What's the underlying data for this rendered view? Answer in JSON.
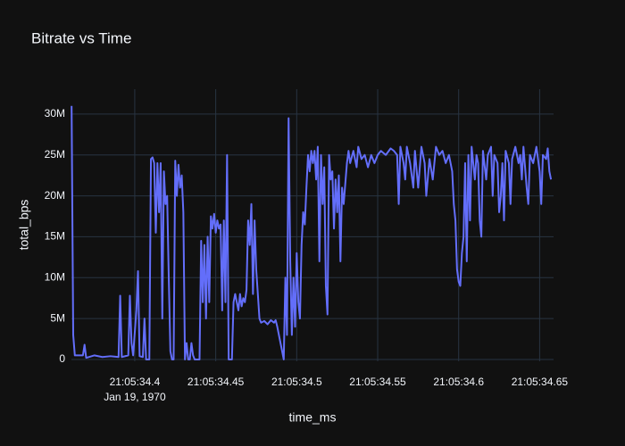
{
  "chart_data": {
    "type": "line",
    "title": "Bitrate vs Time",
    "x_label": "time_ms",
    "y_label": "total_bps",
    "x_date_label": "Jan 19, 1970",
    "color": "#636efa",
    "grid": true,
    "xlim": [
      1631134360.9,
      1631134658.6
    ],
    "xticks": [
      {
        "value": 1631134400,
        "label": "21:05:34.4"
      },
      {
        "value": 1631134450,
        "label": "21:05:34.45"
      },
      {
        "value": 1631134500,
        "label": "21:05:34.5"
      },
      {
        "value": 1631134550,
        "label": "21:05:34.55"
      },
      {
        "value": 1631134600,
        "label": "21:05:34.6"
      },
      {
        "value": 1631134650,
        "label": "21:05:34.65"
      }
    ],
    "ylim": [
      -220000,
      33040000
    ],
    "yticks": [
      0,
      {
        "value": 5000000,
        "label": "5M"
      },
      {
        "value": 10000000,
        "label": "10M"
      },
      {
        "value": 15000000,
        "label": "15M"
      },
      {
        "value": 20000000,
        "label": "20M"
      },
      {
        "value": 25000000,
        "label": "25M"
      },
      {
        "value": 30000000,
        "label": "30M"
      }
    ],
    "x": [
      1631134361,
      1631134362,
      1631134363,
      1631134368,
      1631134369,
      1631134370,
      1631134375,
      1631134380,
      1631134385,
      1631134390,
      1631134391,
      1631134392,
      1631134396,
      1631134397,
      1631134398,
      1631134399,
      1631134401,
      1631134402,
      1631134403,
      1631134405,
      1631134406,
      1631134407,
      1631134409,
      1631134410,
      1631134411,
      1631134412,
      1631134413,
      1631134414,
      1631134415,
      1631134416,
      1631134417,
      1631134418,
      1631134419,
      1631134420,
      1631134421,
      1631134422,
      1631134423,
      1631134424,
      1631134425,
      1631134426,
      1631134427,
      1631134428,
      1631134429,
      1631134430,
      1631134431,
      1631134432,
      1631134433,
      1631134434,
      1631134435,
      1631134436,
      1631134437,
      1631134440,
      1631134441,
      1631134442,
      1631134443,
      1631134444,
      1631134445,
      1631134446,
      1631134447,
      1631134448,
      1631134449,
      1631134450,
      1631134451,
      1631134452,
      1631134453,
      1631134454,
      1631134455,
      1631134456,
      1631134457,
      1631134458,
      1631134460,
      1631134461,
      1631134462,
      1631134463,
      1631134464,
      1631134465,
      1631134466,
      1631134467,
      1631134468,
      1631134469,
      1631134470,
      1631134471,
      1631134472,
      1631134473,
      1631134474,
      1631134475,
      1631134476,
      1631134477,
      1631134478,
      1631134480,
      1631134482,
      1631134484,
      1631134486,
      1631134487,
      1631134488,
      1631134490,
      1631134492,
      1631134493,
      1631134494,
      1631134495,
      1631134496,
      1631134497,
      1631134498,
      1631134499,
      1631134500,
      1631134501,
      1631134502,
      1631134503,
      1631134504,
      1631134505,
      1631134506,
      1631134507,
      1631134508,
      1631134509,
      1631134510,
      1631134511,
      1631134512,
      1631134513,
      1631134514,
      1631134515,
      1631134516,
      1631134517,
      1631134518,
      1631134519,
      1631134520,
      1631134521,
      1631134522,
      1631134523,
      1631134524,
      1631134525,
      1631134526,
      1631134527,
      1631134528,
      1631134529,
      1631134531,
      1631134532,
      1631134533,
      1631134535,
      1631134537,
      1631134538,
      1631134540,
      1631134542,
      1631134544,
      1631134546,
      1631134548,
      1631134550,
      1631134552,
      1631134555,
      1631134558,
      1631134560,
      1631134562,
      1631134563,
      1631134564,
      1631134566,
      1631134567,
      1631134568,
      1631134570,
      1631134572,
      1631134573,
      1631134575,
      1631134577,
      1631134579,
      1631134580,
      1631134582,
      1631134584,
      1631134586,
      1631134588,
      1631134590,
      1631134592,
      1631134594,
      1631134596,
      1631134597,
      1631134598,
      1631134599,
      1631134600,
      1631134601,
      1631134602,
      1631134603,
      1631134604,
      1631134605,
      1631134606,
      1631134607,
      1631134608,
      1631134610,
      1631134611,
      1631134612,
      1631134613,
      1631134614,
      1631134615,
      1631134617,
      1631134618,
      1631134620,
      1631134621,
      1631134622,
      1631134624,
      1631134625,
      1631134626,
      1631134627,
      1631134628,
      1631134629,
      1631134631,
      1631134632,
      1631134633,
      1631134635,
      1631134637,
      1631134638,
      1631134639,
      1631134640,
      1631134642,
      1631134643,
      1631134644,
      1631134646,
      1631134648,
      1631134650,
      1631134651,
      1631134652,
      1631134654,
      1631134655,
      1631134656,
      1631134657
    ],
    "values": [
      31000000,
      3000000,
      500000,
      500000,
      1800000,
      200000,
      500000,
      300000,
      400000,
      300000,
      7800000,
      300000,
      500000,
      7800000,
      2000000,
      500000,
      6000000,
      10800000,
      400000,
      300000,
      5000000,
      0,
      0,
      24500000,
      24700000,
      24000000,
      15500000,
      24000000,
      18000000,
      24000000,
      5000000,
      23000000,
      19000000,
      20000000,
      10000000,
      1000000,
      0,
      0,
      24300000,
      20000000,
      23800000,
      21000000,
      22500000,
      18000000,
      0,
      2000000,
      0,
      0,
      2000000,
      500000,
      0,
      0,
      14500000,
      7000000,
      14000000,
      5000000,
      15000000,
      7000000,
      17500000,
      16000000,
      17800000,
      15500000,
      17000000,
      16000000,
      16500000,
      6000000,
      17000000,
      7000000,
      25000000,
      0,
      0,
      7000000,
      8000000,
      7000000,
      6000000,
      8000000,
      6500000,
      7500000,
      7000000,
      8500000,
      17000000,
      14000000,
      19000000,
      8000000,
      17000000,
      11000000,
      8000000,
      5000000,
      4500000,
      4700000,
      4300000,
      4800000,
      4500000,
      4800000,
      4000000,
      2000000,
      0,
      10000000,
      3000000,
      29500000,
      12000000,
      3000000,
      10000000,
      4000000,
      13000000,
      7000000,
      5000000,
      14000000,
      18000000,
      16500000,
      21000000,
      25000000,
      23000000,
      25500000,
      24000000,
      25500000,
      22000000,
      26000000,
      12000000,
      25000000,
      19000000,
      23500000,
      9000000,
      5500000,
      25000000,
      22000000,
      23000000,
      16000000,
      22000000,
      18000000,
      22500000,
      12000000,
      21000000,
      19000000,
      24000000,
      25500000,
      24000000,
      25500000,
      23500000,
      26000000,
      24500000,
      25000000,
      23500000,
      25000000,
      24000000,
      25000000,
      25500000,
      25000000,
      25800000,
      25500000,
      25000000,
      19000000,
      26000000,
      24000000,
      22000000,
      26000000,
      24000000,
      21000000,
      25500000,
      21000000,
      26000000,
      24000000,
      20000000,
      24500000,
      22000000,
      26000000,
      25000000,
      25500000,
      24000000,
      25000000,
      23000000,
      19000000,
      17000000,
      11000000,
      9500000,
      9000000,
      13000000,
      15000000,
      24000000,
      12000000,
      25000000,
      17000000,
      26000000,
      22000000,
      25000000,
      24000000,
      17000000,
      15000000,
      25500000,
      22000000,
      25000000,
      26000000,
      20000000,
      25000000,
      24000000,
      18000000,
      20000000,
      24000000,
      17000000,
      25500000,
      24000000,
      19000000,
      24500000,
      26000000,
      24000000,
      25000000,
      22000000,
      26000000,
      21000000,
      19000000,
      25000000,
      24000000,
      26000000,
      23000000,
      19000000,
      25000000,
      24500000,
      25800000,
      23000000,
      22000000
    ]
  }
}
